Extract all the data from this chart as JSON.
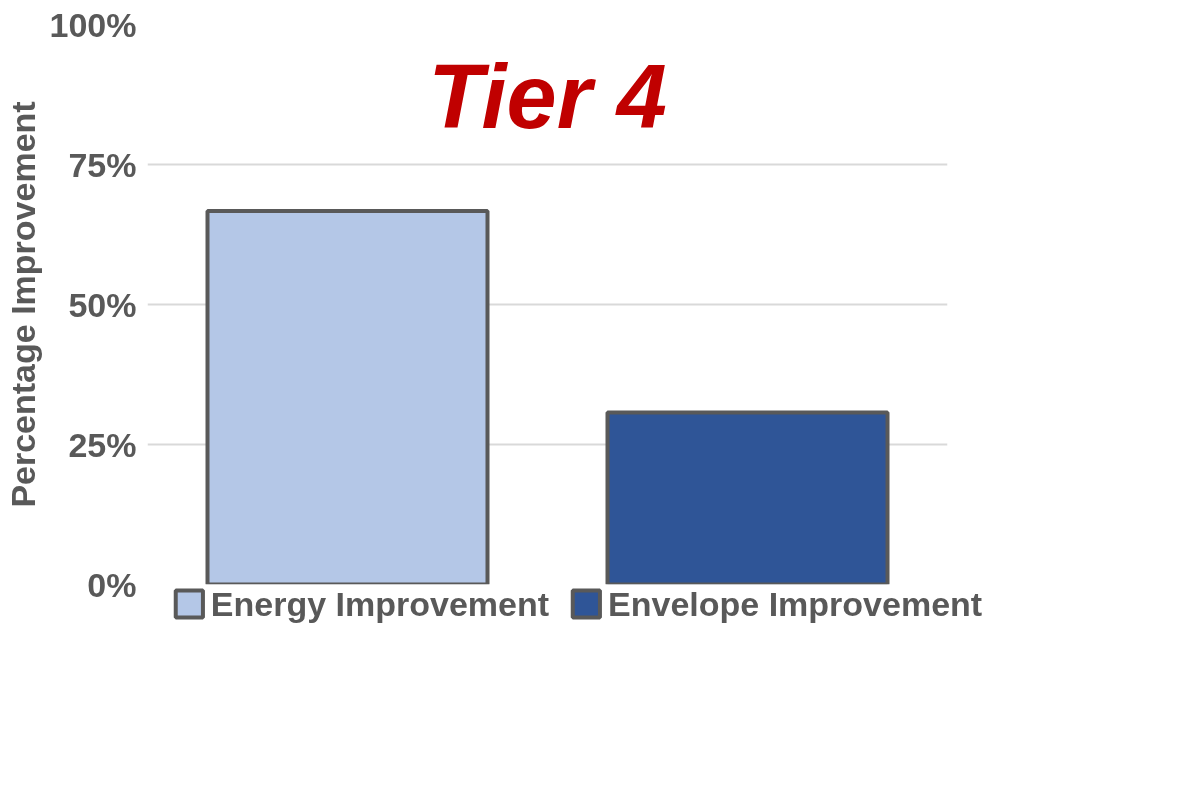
{
  "chart_data": {
    "type": "bar",
    "title": "Tier 4",
    "ylabel": "Percentage Improvement",
    "categories": [
      null,
      null
    ],
    "series": [
      {
        "name": "Energy Improvement",
        "color": "#b4c7e7",
        "values": [
          66.7,
          null
        ]
      },
      {
        "name": "Envelope Improvement",
        "color": "#2f5597",
        "values": [
          null,
          30.7
        ]
      }
    ],
    "ylim": [
      0,
      100
    ],
    "yticks": [
      {
        "value": 0,
        "label": "0%"
      },
      {
        "value": 25,
        "label": "25%"
      },
      {
        "value": 50,
        "label": "50%"
      },
      {
        "value": 75,
        "label": "75%"
      },
      {
        "value": 100,
        "label": "100%"
      }
    ],
    "grid": "y",
    "legend": "bottom"
  }
}
